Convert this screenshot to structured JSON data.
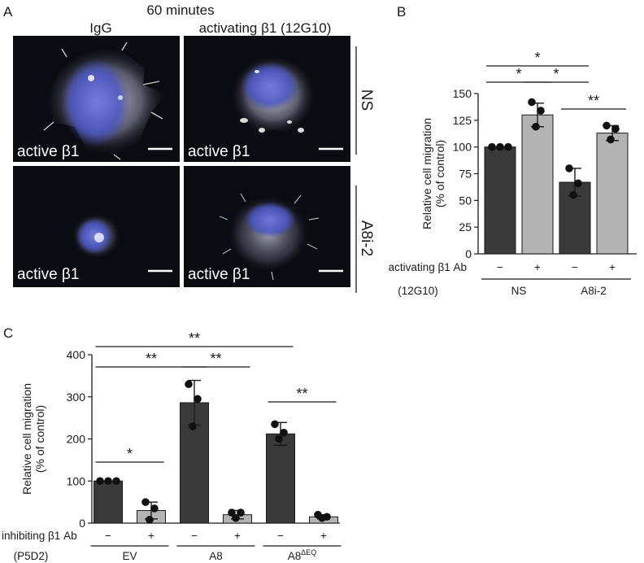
{
  "panel_a": {
    "label": "A",
    "title": "60 minutes",
    "columns": [
      "IgG",
      "activating β1 (12G10)"
    ],
    "rows": [
      "NS",
      "A8i-2"
    ],
    "image_label": "active β1"
  },
  "chart_data": [
    {
      "panel": "B",
      "type": "bar",
      "ylabel": "Relative cell migration (% of control)",
      "ylabel_lines": [
        "Relative cell migration",
        "(% of control)"
      ],
      "ylim": [
        0,
        150
      ],
      "yticks": [
        0,
        25,
        50,
        75,
        100,
        125,
        150
      ],
      "treatment_label": "activating β1 Ab",
      "treatment_sub": "(12G10)",
      "groups": [
        "NS",
        "A8i-2"
      ],
      "categories": [
        "NS −",
        "NS +",
        "A8i-2 −",
        "A8i-2 +"
      ],
      "signs": [
        "−",
        "+",
        "−",
        "+"
      ],
      "values": [
        100,
        130,
        67,
        113
      ],
      "error": [
        0,
        11,
        13,
        7
      ],
      "points": [
        [
          100,
          100,
          100
        ],
        [
          142,
          134,
          119
        ],
        [
          80,
          66,
          55
        ],
        [
          120,
          117,
          107
        ]
      ],
      "bar_colors": [
        "#3a3a3a",
        "#b3b3b3",
        "#3a3a3a",
        "#b3b3b3"
      ],
      "significance": [
        {
          "from": 0,
          "to": 2,
          "label": "*"
        },
        {
          "from": 0,
          "to": 1,
          "label": "*"
        },
        {
          "from": 1,
          "to": 2,
          "label": "*"
        },
        {
          "from": 2,
          "to": 3,
          "label": "**"
        }
      ]
    },
    {
      "panel": "C",
      "type": "bar",
      "ylabel": "Relative cell migration (% of control)",
      "ylabel_lines": [
        "Relative cell migration",
        "(% of control)"
      ],
      "ylim": [
        0,
        400
      ],
      "yticks": [
        0,
        100,
        200,
        300,
        400
      ],
      "treatment_label": "inhibiting β1 Ab",
      "treatment_sub": "(P5D2)",
      "groups": [
        "EV",
        "A8",
        "A8ΔEQ"
      ],
      "group_main": [
        "EV",
        "A8",
        "A8"
      ],
      "group_sup": [
        "",
        "",
        "ΔEQ"
      ],
      "categories": [
        "EV −",
        "EV +",
        "A8 −",
        "A8 +",
        "A8ΔEQ −",
        "A8ΔEQ +"
      ],
      "signs": [
        "−",
        "+",
        "−",
        "+",
        "−",
        "+"
      ],
      "values": [
        100,
        30,
        286,
        20,
        212,
        15
      ],
      "error": [
        0,
        20,
        53,
        10,
        27,
        5
      ],
      "points": [
        [
          100,
          100,
          100
        ],
        [
          50,
          35,
          8
        ],
        [
          330,
          295,
          230
        ],
        [
          25,
          25,
          12
        ],
        [
          235,
          215,
          200
        ],
        [
          20,
          15,
          12
        ]
      ],
      "bar_colors": [
        "#3a3a3a",
        "#b3b3b3",
        "#3a3a3a",
        "#b3b3b3",
        "#3a3a3a",
        "#b3b3b3"
      ],
      "significance": [
        {
          "from": 0,
          "to": 4,
          "label": "**"
        },
        {
          "from": 0,
          "to": 2,
          "label": "**"
        },
        {
          "from": 2,
          "to": 3,
          "label": "**"
        },
        {
          "from": 0,
          "to": 1,
          "label": "*"
        },
        {
          "from": 4,
          "to": 5,
          "label": "**"
        }
      ]
    }
  ],
  "panel_labels": {
    "b": "B",
    "c": "C"
  }
}
